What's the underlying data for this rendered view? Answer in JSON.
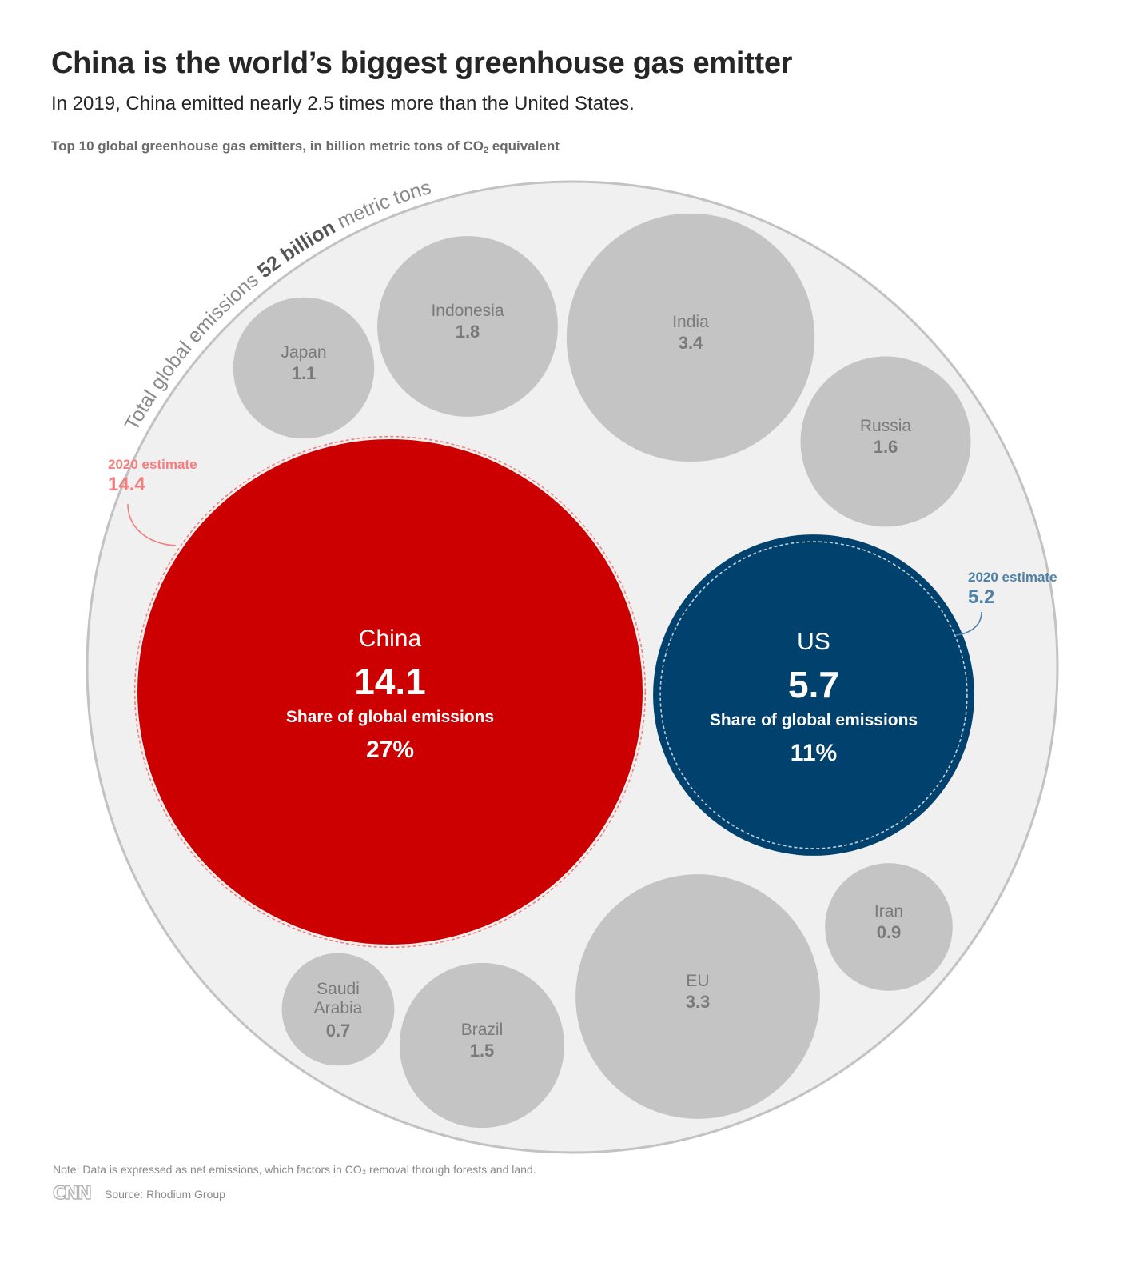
{
  "header": {
    "title": "China is the world’s biggest greenhouse gas emitter",
    "subtitle": "In 2019, China emitted nearly 2.5 times more than the United States.",
    "chart_label_prefix": "Top 10 global greenhouse gas emitters, in billion metric tons of CO",
    "chart_label_sub": "2",
    "chart_label_suffix": " equivalent"
  },
  "chart_data": {
    "type": "bubble",
    "total": {
      "prefix": "Total global emissions ",
      "value": "52 billion",
      "suffix": " metric tons"
    },
    "share_label": "Share of global emissions",
    "countries": [
      {
        "name": "China",
        "value": 14.1,
        "value_label": "14.1",
        "share": "27%",
        "estimate_label": "2020 estimate",
        "estimate": 14.4,
        "estimate_text": "14.4",
        "color": "#cc0000"
      },
      {
        "name": "US",
        "value": 5.7,
        "value_label": "5.7",
        "share": "11%",
        "estimate_label": "2020 estimate",
        "estimate": 5.2,
        "estimate_text": "5.2",
        "color": "#00416d"
      },
      {
        "name": "India",
        "value": 3.4,
        "value_label": "3.4",
        "color": "#c4c4c4"
      },
      {
        "name": "EU",
        "value": 3.3,
        "value_label": "3.3",
        "color": "#c4c4c4"
      },
      {
        "name": "Indonesia",
        "value": 1.8,
        "value_label": "1.8",
        "color": "#c4c4c4"
      },
      {
        "name": "Russia",
        "value": 1.6,
        "value_label": "1.6",
        "color": "#c4c4c4"
      },
      {
        "name": "Brazil",
        "value": 1.5,
        "value_label": "1.5",
        "color": "#c4c4c4"
      },
      {
        "name": "Japan",
        "value": 1.1,
        "value_label": "1.1",
        "color": "#c4c4c4"
      },
      {
        "name": "Iran",
        "value": 0.9,
        "value_label": "0.9",
        "color": "#c4c4c4"
      },
      {
        "name": "Saudi\nArabia",
        "value": 0.7,
        "value_label": "0.7",
        "color": "#c4c4c4"
      }
    ]
  },
  "footer": {
    "note": "Note: Data is expressed as net emissions, which factors in CO₂ removal through forests and land.",
    "logo": "CNN",
    "source": "Source: Rhodium Group"
  },
  "colors": {
    "outer_fill": "#f0f0f0",
    "outer_stroke": "#c2c2c2",
    "china_estimate": "#f47d7d",
    "us_estimate": "#4f82a8"
  }
}
